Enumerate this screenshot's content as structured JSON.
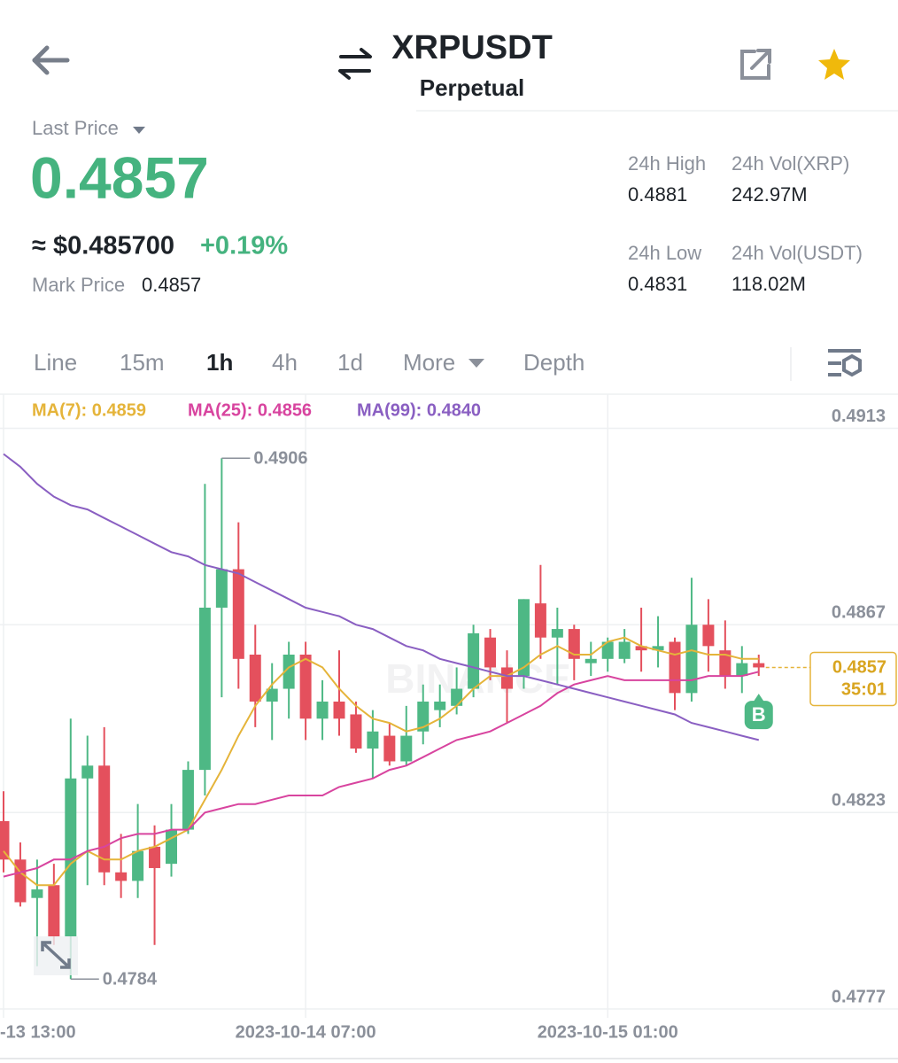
{
  "header": {
    "title": "XRPUSDT",
    "subtitle": "Perpetual"
  },
  "ticker": {
    "last_price_label": "Last Price",
    "last_price": "0.4857",
    "approx_price": "≈ $0.485700",
    "change": "+0.19%",
    "mark_price_label": "Mark Price",
    "mark_price": "0.4857",
    "stats": [
      {
        "label": "24h High",
        "value": "0.4881"
      },
      {
        "label": "24h Vol(XRP)",
        "value": "242.97M"
      },
      {
        "label": "24h Low",
        "value": "0.4831"
      },
      {
        "label": "24h Vol(USDT)",
        "value": "118.02M"
      }
    ]
  },
  "tabs": {
    "items": [
      "Line",
      "15m",
      "1h",
      "4h",
      "1d",
      "More",
      "Depth"
    ],
    "active": 2
  },
  "chart_data": {
    "type": "candlestick",
    "up_color": "#4eb885",
    "down_color": "#e4505d",
    "open": [
      0.4821,
      0.4812,
      0.4803,
      0.4806,
      0.4794,
      0.4831,
      0.4834,
      0.4809,
      0.4807,
      0.4815,
      0.4811,
      0.4819,
      0.4833,
      0.4871,
      0.488,
      0.486,
      0.4849,
      0.4852,
      0.486,
      0.4845,
      0.4849,
      0.4846,
      0.4838,
      0.4841,
      0.4835,
      0.4842,
      0.4847,
      0.4848,
      0.4852,
      0.4864,
      0.4857,
      0.4855,
      0.4872,
      0.4864,
      0.4866,
      0.4858,
      0.4859,
      0.4859,
      0.4862,
      0.4861,
      0.4863,
      0.4851,
      0.4867,
      0.4861,
      0.4855,
      0.4858
    ],
    "high": [
      0.4828,
      0.4816,
      0.4812,
      0.4811,
      0.4845,
      0.4841,
      0.4843,
      0.4818,
      0.4825,
      0.482,
      0.4825,
      0.4835,
      0.49,
      0.4906,
      0.4891,
      0.4867,
      0.4858,
      0.4863,
      0.4863,
      0.4854,
      0.4861,
      0.4849,
      0.4847,
      0.4844,
      0.4848,
      0.4853,
      0.4853,
      0.4857,
      0.4867,
      0.4866,
      0.4861,
      0.4873,
      0.4881,
      0.4871,
      0.4867,
      0.4863,
      0.4864,
      0.4866,
      0.4871,
      0.4869,
      0.4864,
      0.4878,
      0.4873,
      0.4868,
      0.4862,
      0.486
    ],
    "low": [
      0.4809,
      0.4801,
      0.4787,
      0.4792,
      0.4784,
      0.4806,
      0.4806,
      0.4803,
      0.4803,
      0.4792,
      0.4808,
      0.4818,
      0.4827,
      0.485,
      0.4852,
      0.4843,
      0.484,
      0.4845,
      0.484,
      0.484,
      0.4841,
      0.4837,
      0.4831,
      0.4834,
      0.4834,
      0.4839,
      0.4843,
      0.4846,
      0.485,
      0.4854,
      0.4844,
      0.4852,
      0.4859,
      0.4853,
      0.4854,
      0.4855,
      0.4856,
      0.4858,
      0.4856,
      0.4857,
      0.4847,
      0.4849,
      0.4856,
      0.4852,
      0.4851,
      0.4855
    ],
    "close": [
      0.4812,
      0.4802,
      0.4805,
      0.4794,
      0.4831,
      0.4834,
      0.4809,
      0.4807,
      0.4814,
      0.481,
      0.4819,
      0.4833,
      0.4871,
      0.488,
      0.4859,
      0.4849,
      0.4852,
      0.486,
      0.4845,
      0.4849,
      0.4845,
      0.4838,
      0.4842,
      0.4835,
      0.4841,
      0.4849,
      0.4849,
      0.4852,
      0.4865,
      0.4857,
      0.4852,
      0.4873,
      0.4864,
      0.4866,
      0.4859,
      0.4859,
      0.4863,
      0.4863,
      0.4861,
      0.4862,
      0.4851,
      0.4867,
      0.4862,
      0.4855,
      0.4858,
      0.4857
    ],
    "series": [
      {
        "name": "MA(7): 0.4859",
        "color": "#e5b43a",
        "values": [
          0.4814,
          0.4809,
          0.4806,
          0.4806,
          0.4811,
          0.4814,
          0.4812,
          0.4812,
          0.4814,
          0.4815,
          0.4817,
          0.4819,
          0.4826,
          0.4833,
          0.4841,
          0.4848,
          0.4853,
          0.4857,
          0.4859,
          0.4857,
          0.4852,
          0.4848,
          0.4845,
          0.4844,
          0.4842,
          0.4843,
          0.4845,
          0.4848,
          0.4852,
          0.4855,
          0.4855,
          0.4857,
          0.486,
          0.4862,
          0.486,
          0.486,
          0.4863,
          0.4864,
          0.4862,
          0.4861,
          0.486,
          0.4861,
          0.486,
          0.486,
          0.4859,
          0.4859
        ]
      },
      {
        "name": "MA(25): 0.4856",
        "color": "#d8449f",
        "values": [
          0.4808,
          0.4809,
          0.481,
          0.4812,
          0.4812,
          0.4814,
          0.4815,
          0.4817,
          0.4818,
          0.4818,
          0.4819,
          0.4819,
          0.4823,
          0.4824,
          0.4825,
          0.4825,
          0.4826,
          0.4827,
          0.4827,
          0.4827,
          0.4829,
          0.483,
          0.4831,
          0.4833,
          0.4834,
          0.4836,
          0.4838,
          0.484,
          0.4841,
          0.4842,
          0.4844,
          0.4846,
          0.4848,
          0.4851,
          0.4853,
          0.4854,
          0.4855,
          0.4854,
          0.4854,
          0.4854,
          0.4854,
          0.4854,
          0.4855,
          0.4855,
          0.4855,
          0.4856
        ]
      },
      {
        "name": "MA(99): 0.4840",
        "color": "#8a5fc2",
        "values": [
          0.4907,
          0.4904,
          0.49,
          0.4897,
          0.4895,
          0.4894,
          0.4892,
          0.489,
          0.4888,
          0.4886,
          0.4884,
          0.4883,
          0.4881,
          0.488,
          0.4879,
          0.4877,
          0.4875,
          0.4873,
          0.4871,
          0.487,
          0.4869,
          0.4867,
          0.4866,
          0.4864,
          0.4862,
          0.4861,
          0.4859,
          0.4858,
          0.4857,
          0.4856,
          0.4855,
          0.4855,
          0.4854,
          0.4853,
          0.4852,
          0.4851,
          0.485,
          0.4849,
          0.4848,
          0.4847,
          0.4846,
          0.4844,
          0.4843,
          0.4842,
          0.4841,
          0.484
        ]
      }
    ],
    "ylim": [
      0.4777,
      0.4921
    ],
    "yticks": [
      0.4913,
      0.4867,
      0.4823,
      0.4777
    ],
    "xticks": [
      {
        "value": 0,
        "label": "-13 13:00"
      },
      {
        "value": 18,
        "label": "2023-10-14 07:00"
      },
      {
        "value": 36,
        "label": "2023-10-15 01:00"
      }
    ],
    "grid": true,
    "countdown": "35:01",
    "trade_marker": "B",
    "watermark": "BINANCE"
  }
}
